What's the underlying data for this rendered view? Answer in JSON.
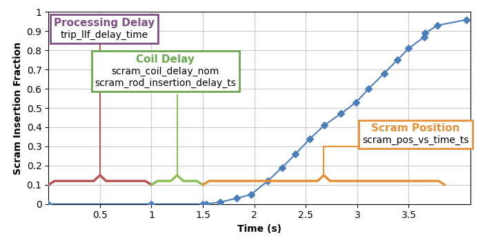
{
  "chart_data": {
    "type": "line",
    "x_label": "Time (s)",
    "y_label": "Scram Insertion Fraction",
    "x": [
      0,
      1,
      1.5,
      1.53,
      1.67,
      1.83,
      1.97,
      2.13,
      2.27,
      2.4,
      2.54,
      2.68,
      2.84,
      2.99,
      3.11,
      3.26,
      3.39,
      3.5,
      3.65,
      3.66,
      3.78,
      4.06
    ],
    "values": [
      0,
      0,
      0,
      0,
      0.01,
      0.03,
      0.05,
      0.12,
      0.19,
      0.26,
      0.34,
      0.41,
      0.47,
      0.53,
      0.6,
      0.68,
      0.75,
      0.81,
      0.87,
      0.89,
      0.93,
      0.96
    ],
    "color": "#4a7ebb",
    "marker": "diamond",
    "line_style": "solid",
    "xlim": [
      0,
      4.1
    ],
    "xticks": [
      0.5,
      1,
      1.5,
      2,
      2.5,
      3,
      3.5
    ],
    "ylim": [
      0,
      1
    ],
    "yticks": [
      0,
      0.1,
      0.2,
      0.3,
      0.4,
      0.5,
      0.6,
      0.7,
      0.8,
      0.9,
      1
    ],
    "grid": true,
    "annotations": [
      {
        "title": "Processing Delay",
        "lines": [
          "trip_llf_delay_time"
        ],
        "start": 0,
        "end": 1,
        "color": "#b85450",
        "box_color": "#7f4f86"
      },
      {
        "title": "Coil Delay",
        "lines": [
          "scram_coil_delay_nom",
          "scram_rod_insertion_delay_ts"
        ],
        "start": 1,
        "end": 1.5,
        "color": "#8cbf5a",
        "box_color": "#6aa84f"
      },
      {
        "title": "Scram Position",
        "lines": [
          "scram_pos_vs_time_ts"
        ],
        "start": 1.5,
        "end": 3.85,
        "color": "#e69138",
        "box_color": "#e69138"
      }
    ]
  }
}
